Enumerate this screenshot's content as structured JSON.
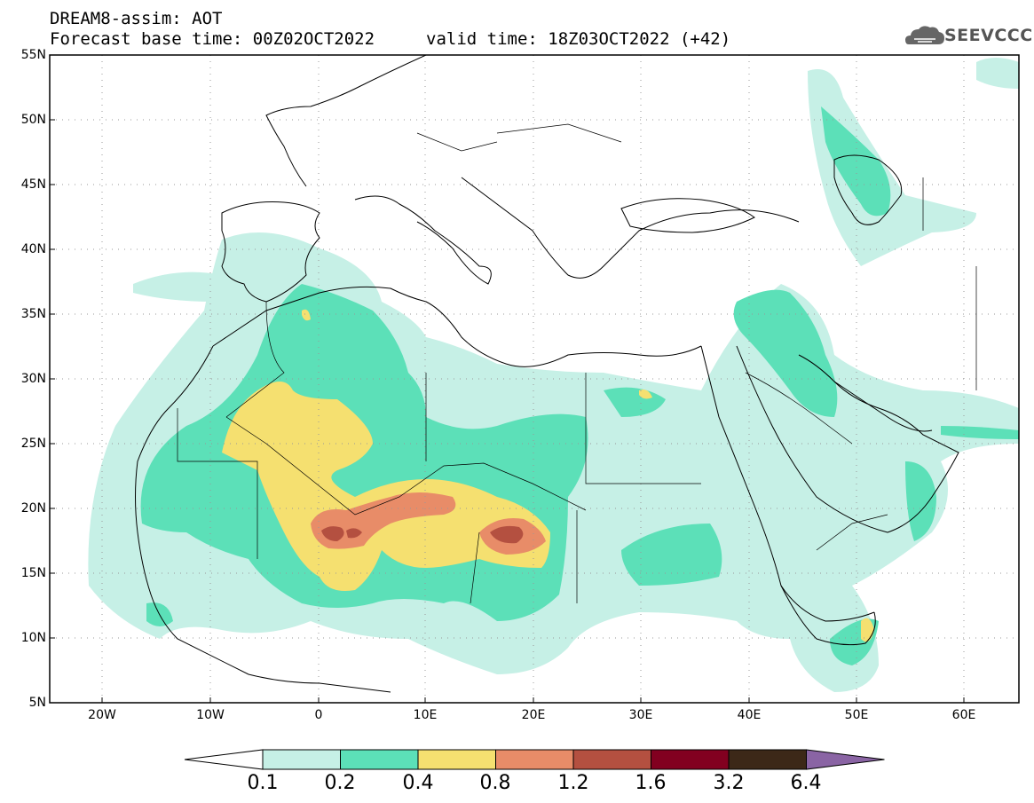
{
  "title": {
    "line1": "DREAM8-assim: AOT",
    "line2": "Forecast base time: 00Z02OCT2022",
    "valid": "valid time: 18Z03OCT2022 (+42)"
  },
  "logo": {
    "text": "SEEVCCC",
    "icon": "cloud-icon"
  },
  "map": {
    "lon_range": [
      -25,
      65
    ],
    "lat_range": [
      5,
      55
    ],
    "lat_labels": [
      "55N",
      "50N",
      "45N",
      "40N",
      "35N",
      "30N",
      "25N",
      "20N",
      "15N",
      "10N",
      "5N"
    ],
    "lon_labels": [
      "20W",
      "10W",
      "0",
      "10E",
      "20E",
      "30E",
      "40E",
      "50E",
      "60E"
    ],
    "grid": true
  },
  "colorbar": {
    "labels": [
      "0.1",
      "0.2",
      "0.4",
      "0.8",
      "1.2",
      "1.6",
      "3.2",
      "6.4"
    ],
    "colors": [
      "#ffffff",
      "#c6f0e6",
      "#5ce0b8",
      "#f5e070",
      "#e88c68",
      "#b45040",
      "#820020",
      "#3c2818",
      "#8a64a4"
    ]
  },
  "palette": {
    "land_fill": "#ffffff",
    "border": "#000000"
  }
}
